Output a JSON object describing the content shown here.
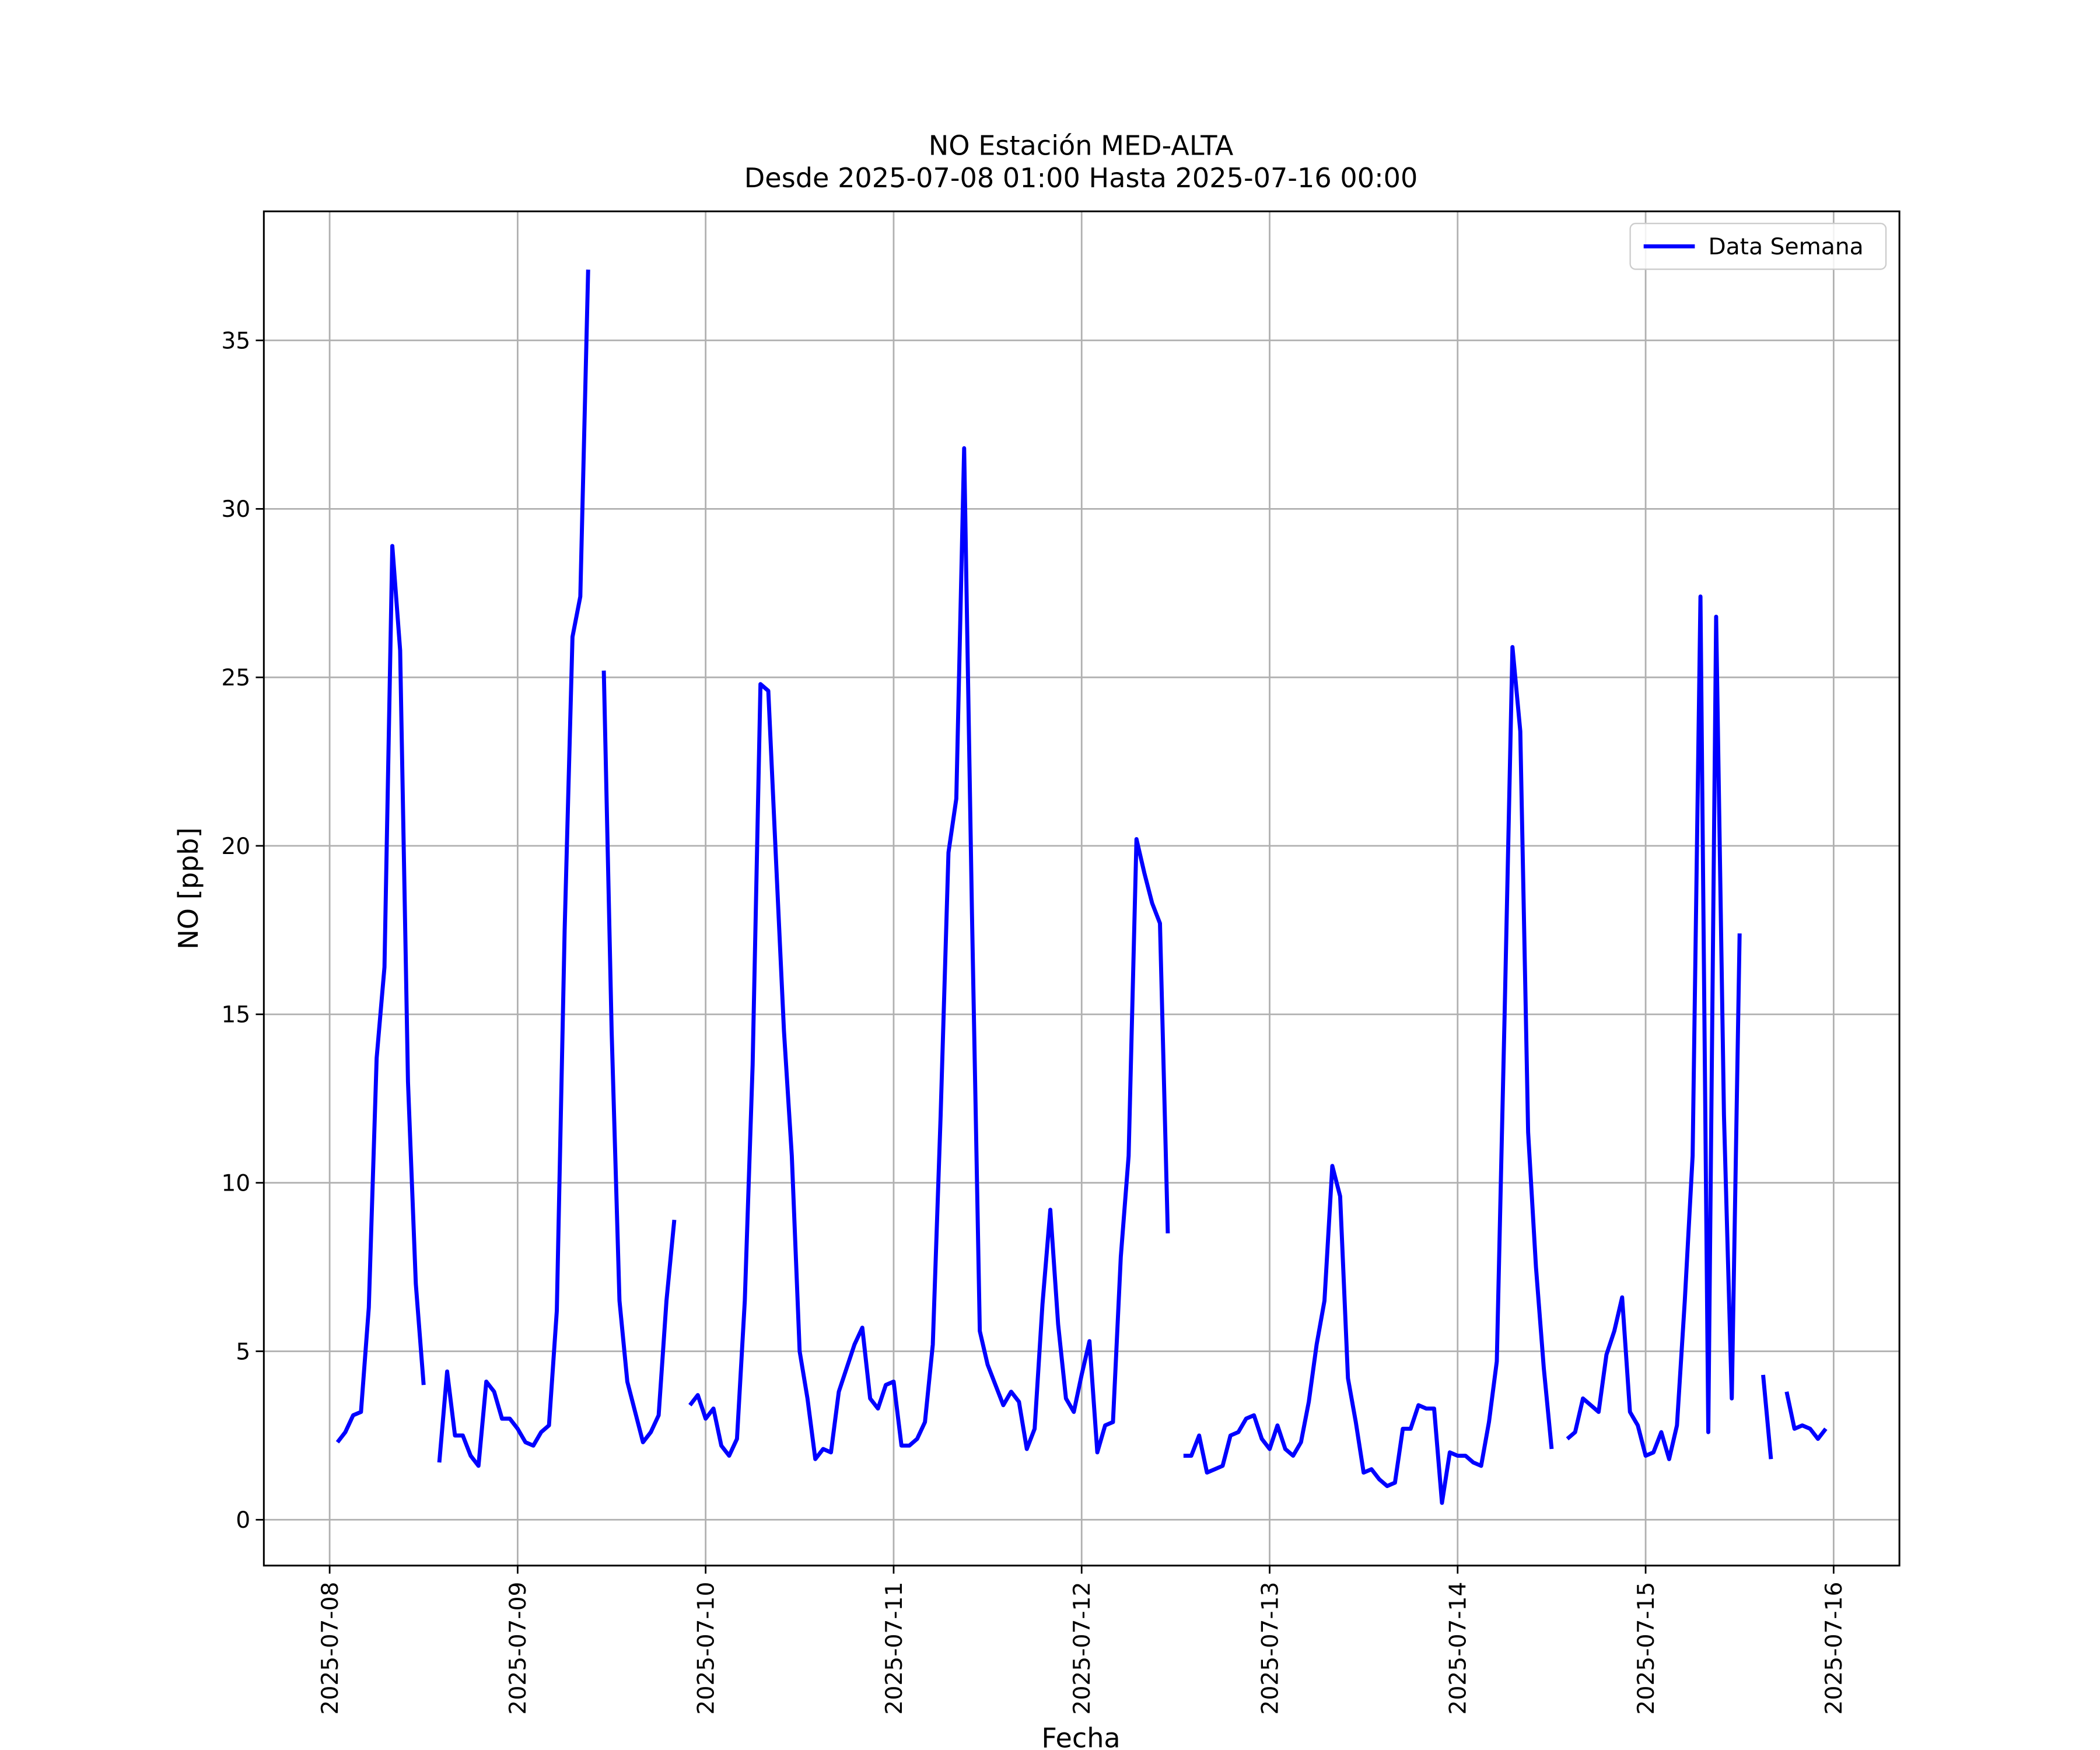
{
  "chart_data": {
    "type": "line",
    "title": "NO Estación MED-ALTA",
    "subtitle": "Desde 2025-07-08 01:00 Hasta 2025-07-16 00:00",
    "xlabel": "Fecha",
    "ylabel": "NO [ppb]",
    "x": [
      "2025-07-08 01:00",
      "2025-07-08 02:00",
      "2025-07-08 03:00",
      "2025-07-08 04:00",
      "2025-07-08 05:00",
      "2025-07-08 06:00",
      "2025-07-08 07:00",
      "2025-07-08 08:00",
      "2025-07-08 09:00",
      "2025-07-08 10:00",
      "2025-07-08 11:00",
      "2025-07-08 12:00",
      "2025-07-08 13:00",
      "2025-07-08 14:00",
      "2025-07-08 15:00",
      "2025-07-08 16:00",
      "2025-07-08 17:00",
      "2025-07-08 18:00",
      "2025-07-08 19:00",
      "2025-07-08 20:00",
      "2025-07-08 21:00",
      "2025-07-08 22:00",
      "2025-07-08 23:00",
      "2025-07-09 00:00",
      "2025-07-09 01:00",
      "2025-07-09 02:00",
      "2025-07-09 03:00",
      "2025-07-09 04:00",
      "2025-07-09 05:00",
      "2025-07-09 06:00",
      "2025-07-09 07:00",
      "2025-07-09 08:00",
      "2025-07-09 09:00",
      "2025-07-09 10:00",
      "2025-07-09 11:00",
      "2025-07-09 12:00",
      "2025-07-09 13:00",
      "2025-07-09 14:00",
      "2025-07-09 15:00",
      "2025-07-09 16:00",
      "2025-07-09 17:00",
      "2025-07-09 18:00",
      "2025-07-09 19:00",
      "2025-07-09 20:00",
      "2025-07-09 21:00",
      "2025-07-09 22:00",
      "2025-07-09 23:00",
      "2025-07-10 00:00",
      "2025-07-10 01:00",
      "2025-07-10 02:00",
      "2025-07-10 03:00",
      "2025-07-10 04:00",
      "2025-07-10 05:00",
      "2025-07-10 06:00",
      "2025-07-10 07:00",
      "2025-07-10 08:00",
      "2025-07-10 09:00",
      "2025-07-10 10:00",
      "2025-07-10 11:00",
      "2025-07-10 12:00",
      "2025-07-10 13:00",
      "2025-07-10 14:00",
      "2025-07-10 15:00",
      "2025-07-10 16:00",
      "2025-07-10 17:00",
      "2025-07-10 18:00",
      "2025-07-10 19:00",
      "2025-07-10 20:00",
      "2025-07-10 21:00",
      "2025-07-10 22:00",
      "2025-07-10 23:00",
      "2025-07-11 00:00",
      "2025-07-11 01:00",
      "2025-07-11 02:00",
      "2025-07-11 03:00",
      "2025-07-11 04:00",
      "2025-07-11 05:00",
      "2025-07-11 06:00",
      "2025-07-11 07:00",
      "2025-07-11 08:00",
      "2025-07-11 09:00",
      "2025-07-11 10:00",
      "2025-07-11 11:00",
      "2025-07-11 12:00",
      "2025-07-11 13:00",
      "2025-07-11 14:00",
      "2025-07-11 15:00",
      "2025-07-11 16:00",
      "2025-07-11 17:00",
      "2025-07-11 18:00",
      "2025-07-11 19:00",
      "2025-07-11 20:00",
      "2025-07-11 21:00",
      "2025-07-11 22:00",
      "2025-07-11 23:00",
      "2025-07-12 00:00",
      "2025-07-12 01:00",
      "2025-07-12 02:00",
      "2025-07-12 03:00",
      "2025-07-12 04:00",
      "2025-07-12 05:00",
      "2025-07-12 06:00",
      "2025-07-12 07:00",
      "2025-07-12 08:00",
      "2025-07-12 09:00",
      "2025-07-12 10:00",
      "2025-07-12 11:00",
      "2025-07-12 12:00",
      "2025-07-12 13:00",
      "2025-07-12 14:00",
      "2025-07-12 15:00",
      "2025-07-12 16:00",
      "2025-07-12 17:00",
      "2025-07-12 18:00",
      "2025-07-12 19:00",
      "2025-07-12 20:00",
      "2025-07-12 21:00",
      "2025-07-12 22:00",
      "2025-07-12 23:00",
      "2025-07-13 00:00",
      "2025-07-13 01:00",
      "2025-07-13 02:00",
      "2025-07-13 03:00",
      "2025-07-13 04:00",
      "2025-07-13 05:00",
      "2025-07-13 06:00",
      "2025-07-13 07:00",
      "2025-07-13 08:00",
      "2025-07-13 09:00",
      "2025-07-13 10:00",
      "2025-07-13 11:00",
      "2025-07-13 12:00",
      "2025-07-13 13:00",
      "2025-07-13 14:00",
      "2025-07-13 15:00",
      "2025-07-13 16:00",
      "2025-07-13 17:00",
      "2025-07-13 18:00",
      "2025-07-13 19:00",
      "2025-07-13 20:00",
      "2025-07-13 21:00",
      "2025-07-13 22:00",
      "2025-07-13 23:00",
      "2025-07-14 00:00",
      "2025-07-14 01:00",
      "2025-07-14 02:00",
      "2025-07-14 03:00",
      "2025-07-14 04:00",
      "2025-07-14 05:00",
      "2025-07-14 06:00",
      "2025-07-14 07:00",
      "2025-07-14 08:00",
      "2025-07-14 09:00",
      "2025-07-14 10:00",
      "2025-07-14 11:00",
      "2025-07-14 12:00",
      "2025-07-14 13:00",
      "2025-07-14 14:00",
      "2025-07-14 15:00",
      "2025-07-14 16:00",
      "2025-07-14 17:00",
      "2025-07-14 18:00",
      "2025-07-14 19:00",
      "2025-07-14 20:00",
      "2025-07-14 21:00",
      "2025-07-14 22:00",
      "2025-07-14 23:00",
      "2025-07-15 00:00",
      "2025-07-15 01:00",
      "2025-07-15 02:00",
      "2025-07-15 03:00",
      "2025-07-15 04:00",
      "2025-07-15 05:00",
      "2025-07-15 06:00",
      "2025-07-15 07:00",
      "2025-07-15 08:00",
      "2025-07-15 09:00",
      "2025-07-15 10:00",
      "2025-07-15 11:00",
      "2025-07-15 12:00",
      "2025-07-15 13:00",
      "2025-07-15 14:00",
      "2025-07-15 15:00",
      "2025-07-15 16:00",
      "2025-07-15 17:00",
      "2025-07-15 18:00",
      "2025-07-15 19:00",
      "2025-07-15 20:00",
      "2025-07-15 21:00",
      "2025-07-15 22:00",
      "2025-07-15 23:00",
      "2025-07-16 00:00"
    ],
    "series": [
      {
        "name": "Data Semana",
        "color": "#0000ff",
        "values": [
          2.3,
          2.6,
          3.1,
          3.2,
          6.3,
          13.7,
          16.4,
          28.9,
          25.8,
          13,
          7,
          4,
          null,
          1.7,
          4.4,
          2.5,
          2.5,
          1.9,
          1.6,
          4.1,
          3.8,
          3.0,
          3.0,
          2.7,
          2.3,
          2.2,
          2.6,
          2.8,
          6.2,
          17.5,
          26.2,
          27.4,
          37.1,
          null,
          25.2,
          14.5,
          6.5,
          4.1,
          3.2,
          2.3,
          2.6,
          3.1,
          6.5,
          8.9,
          null,
          3.4,
          3.7,
          3.0,
          3.3,
          2.2,
          1.9,
          2.4,
          6.5,
          13.5,
          24.8,
          24.6,
          19.5,
          14.5,
          10.8,
          5.0,
          3.6,
          1.8,
          2.1,
          2.0,
          3.8,
          4.5,
          5.2,
          5.7,
          3.6,
          3.3,
          4.0,
          4.1,
          2.2,
          2.2,
          2.4,
          2.9,
          5.2,
          12,
          19.8,
          21.4,
          31.8,
          18,
          5.6,
          4.6,
          4.0,
          3.4,
          3.8,
          3.5,
          2.1,
          2.7,
          6.4,
          9.2,
          5.8,
          3.6,
          3.2,
          4.3,
          5.3,
          2.0,
          2.8,
          2.9,
          7.8,
          10.8,
          20.2,
          19.2,
          18.3,
          17.7,
          8.5,
          null,
          1.9,
          1.9,
          2.5,
          1.4,
          1.5,
          1.6,
          2.5,
          2.6,
          3.0,
          3.1,
          2.4,
          2.1,
          2.8,
          2.1,
          1.9,
          2.3,
          3.5,
          5.2,
          6.5,
          10.5,
          9.6,
          4.2,
          2.9,
          1.4,
          1.5,
          1.2,
          1.0,
          1.1,
          2.7,
          2.7,
          3.4,
          3.3,
          3.3,
          0.5,
          2.0,
          1.9,
          1.9,
          1.7,
          1.6,
          2.9,
          4.7,
          15,
          25.9,
          23.4,
          11.5,
          7.5,
          4.5,
          2.1,
          null,
          2.4,
          2.6,
          3.6,
          3.4,
          3.2,
          4.9,
          5.6,
          6.6,
          3.2,
          2.8,
          1.9,
          2.0,
          2.6,
          1.8,
          2.8,
          6.5,
          10.8,
          27.4,
          2.6,
          26.8,
          12,
          3.6,
          17.4,
          null,
          null,
          4.3,
          1.8,
          null,
          3.8,
          2.7,
          2.8,
          2.7,
          2.4,
          2.7,
          null
        ]
      }
    ],
    "xlim": [
      "2025-07-07 15:36",
      "2025-07-16 08:24"
    ],
    "xticks": [
      "2025-07-08",
      "2025-07-09",
      "2025-07-10",
      "2025-07-11",
      "2025-07-12",
      "2025-07-13",
      "2025-07-14",
      "2025-07-15",
      "2025-07-16"
    ],
    "ylim": [
      -1.36,
      38.83
    ],
    "yticks": [
      0,
      5,
      10,
      15,
      20,
      25,
      30,
      35
    ],
    "grid": true,
    "legend": "upper right"
  }
}
